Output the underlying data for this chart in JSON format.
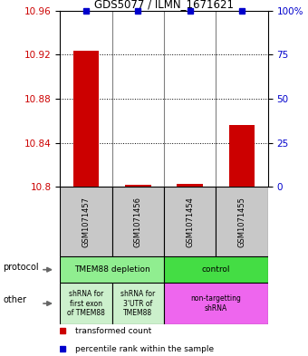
{
  "title": "GDS5077 / ILMN_1671621",
  "samples": [
    "GSM1071457",
    "GSM1071456",
    "GSM1071454",
    "GSM1071455"
  ],
  "red_values": [
    10.924,
    10.802,
    10.803,
    10.856
  ],
  "blue_values": [
    100,
    100,
    100,
    100
  ],
  "ylim_left": [
    10.8,
    10.96
  ],
  "ylim_right": [
    0,
    100
  ],
  "yticks_left": [
    10.8,
    10.84,
    10.88,
    10.92,
    10.96
  ],
  "yticks_right": [
    0,
    25,
    50,
    75,
    100
  ],
  "ytick_labels_left": [
    "10.8",
    "10.84",
    "10.88",
    "10.92",
    "10.96"
  ],
  "ytick_labels_right": [
    "0",
    "25",
    "50",
    "75",
    "100%"
  ],
  "color_red": "#cc0000",
  "color_blue": "#0000cc",
  "color_gray": "#c8c8c8",
  "color_green_light": "#90ee90",
  "color_green_bright": "#44dd44",
  "color_pink": "#ee66ee",
  "color_other_green": "#ccf0cc",
  "legend_red_label": "transformed count",
  "legend_blue_label": "percentile rank within the sample",
  "protocol_label": "protocol",
  "other_label": "other",
  "bar_width": 0.5
}
